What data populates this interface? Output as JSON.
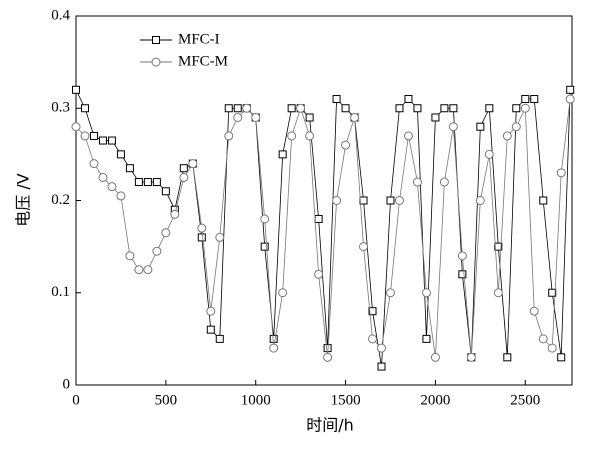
{
  "chart_data": {
    "type": "line",
    "x_label": "时间/h",
    "y_label": "电压 /V",
    "x": [
      0,
      50,
      100,
      150,
      200,
      250,
      300,
      350,
      400,
      450,
      500,
      550,
      600,
      650,
      700,
      750,
      800,
      850,
      900,
      950,
      1000,
      1050,
      1100,
      1150,
      1200,
      1250,
      1300,
      1350,
      1400,
      1450,
      1500,
      1550,
      1600,
      1650,
      1700,
      1750,
      1800,
      1850,
      1900,
      1950,
      2000,
      2050,
      2100,
      2150,
      2200,
      2250,
      2300,
      2350,
      2400,
      2450,
      2500,
      2550,
      2600,
      2650,
      2700,
      2750
    ],
    "series": [
      {
        "name": "MFC-I",
        "color": "#000000",
        "marker": "square",
        "values": [
          0.32,
          0.3,
          0.27,
          0.265,
          0.265,
          0.25,
          0.235,
          0.22,
          0.22,
          0.22,
          0.21,
          0.19,
          0.235,
          0.24,
          0.16,
          0.06,
          0.05,
          0.3,
          0.3,
          0.3,
          0.29,
          0.15,
          0.05,
          0.25,
          0.3,
          0.3,
          0.29,
          0.18,
          0.04,
          0.31,
          0.3,
          0.29,
          0.2,
          0.08,
          0.02,
          0.2,
          0.3,
          0.31,
          0.3,
          0.05,
          0.29,
          0.3,
          0.3,
          0.12,
          0.03,
          0.28,
          0.3,
          0.15,
          0.03,
          0.3,
          0.31,
          0.31,
          0.2,
          0.1,
          0.03,
          0.32
        ]
      },
      {
        "name": "MFC-M",
        "color": "#777777",
        "marker": "circle",
        "values": [
          0.28,
          0.27,
          0.24,
          0.225,
          0.215,
          0.205,
          0.14,
          0.125,
          0.125,
          0.145,
          0.165,
          0.185,
          0.225,
          0.24,
          0.17,
          0.08,
          0.16,
          0.27,
          0.29,
          0.3,
          0.29,
          0.18,
          0.04,
          0.1,
          0.27,
          0.3,
          0.27,
          0.12,
          0.03,
          0.2,
          0.26,
          0.29,
          0.15,
          0.05,
          0.04,
          0.1,
          0.2,
          0.27,
          0.22,
          0.1,
          0.03,
          0.22,
          0.28,
          0.14,
          0.03,
          0.2,
          0.25,
          0.1,
          0.27,
          0.28,
          0.3,
          0.08,
          0.05,
          0.04,
          0.23,
          0.31
        ]
      }
    ],
    "xlim": [
      0,
      2760
    ],
    "ylim": [
      0,
      0.4
    ],
    "xticks": [
      0,
      500,
      1000,
      1500,
      2000,
      2500
    ],
    "yticks": [
      0,
      0.1,
      0.2,
      0.3,
      0.4
    ],
    "legend": "upper left"
  }
}
